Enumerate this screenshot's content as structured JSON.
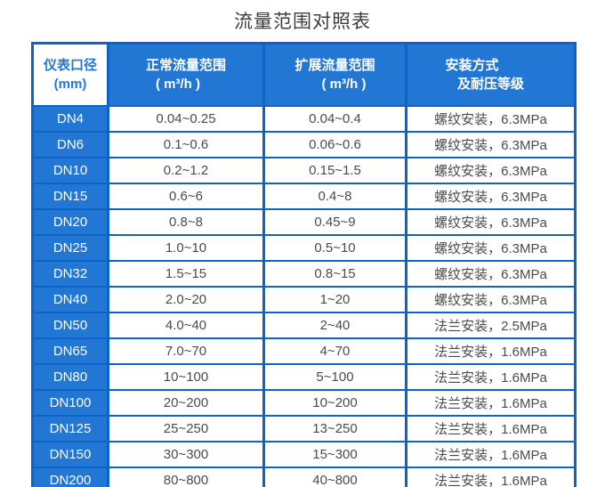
{
  "title": "流量范围对照表",
  "header": {
    "diameter": {
      "line1": "仪表口径",
      "line2": "(mm)"
    },
    "normal": {
      "line1": "正常流量范围",
      "line2": "( m³/h )"
    },
    "extended": {
      "line1": "扩展流量范围",
      "line2": "( m³/h )"
    },
    "install": {
      "line1": "安装方式",
      "line2": "及耐压等级"
    }
  },
  "colors": {
    "fill_blue": "#2277d4",
    "border_blue": "#0e63c6",
    "title_text": "#3d3d3d",
    "cell_text": "#4b4b4b"
  },
  "chart_data": {
    "type": "table",
    "title": "流量范围对照表",
    "columns": [
      "仪表口径(mm)",
      "正常流量范围(m³/h)",
      "扩展流量范围(m³/h)",
      "安装方式及耐压等级"
    ],
    "rows": [
      [
        "DN4",
        "0.04~0.25",
        "0.04~0.4",
        "螺纹安装，6.3MPa"
      ],
      [
        "DN6",
        "0.1~0.6",
        "0.06~0.6",
        "螺纹安装，6.3MPa"
      ],
      [
        "DN10",
        "0.2~1.2",
        "0.15~1.5",
        "螺纹安装，6.3MPa"
      ],
      [
        "DN15",
        "0.6~6",
        "0.4~8",
        "螺纹安装，6.3MPa"
      ],
      [
        "DN20",
        "0.8~8",
        "0.45~9",
        "螺纹安装，6.3MPa"
      ],
      [
        "DN25",
        "1.0~10",
        "0.5~10",
        "螺纹安装，6.3MPa"
      ],
      [
        "DN32",
        "1.5~15",
        "0.8~15",
        "螺纹安装，6.3MPa"
      ],
      [
        "DN40",
        "2.0~20",
        "1~20",
        "螺纹安装，6.3MPa"
      ],
      [
        "DN50",
        "4.0~40",
        "2~40",
        "法兰安装，2.5MPa"
      ],
      [
        "DN65",
        "7.0~70",
        "4~70",
        "法兰安装，1.6MPa"
      ],
      [
        "DN80",
        "10~100",
        "5~100",
        "法兰安装，1.6MPa"
      ],
      [
        "DN100",
        "20~200",
        "10~200",
        "法兰安装，1.6MPa"
      ],
      [
        "DN125",
        "25~250",
        "13~250",
        "法兰安装，1.6MPa"
      ],
      [
        "DN150",
        "30~300",
        "15~300",
        "法兰安装，1.6MPa"
      ],
      [
        "DN200",
        "80~800",
        "40~800",
        "法兰安装，1.6MPa"
      ]
    ]
  }
}
